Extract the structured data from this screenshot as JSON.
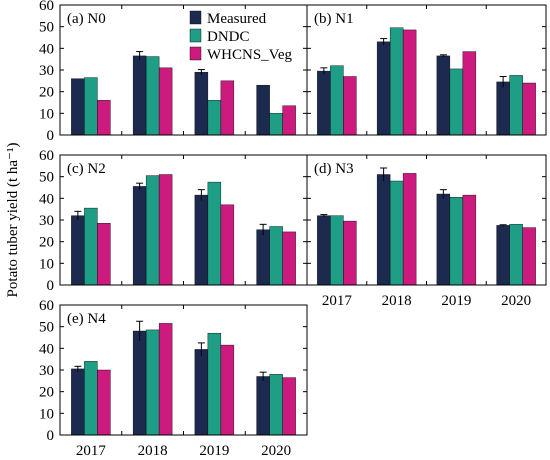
{
  "figure": {
    "ylabel": "Potato tuber yield (t ha⁻¹)",
    "years": [
      "2017",
      "2018",
      "2019",
      "2020"
    ],
    "legend": [
      {
        "name": "Measured",
        "color": "#1b2a4e"
      },
      {
        "name": "DNDC",
        "color": "#1f9e86"
      },
      {
        "name": "WHCNS_Veg",
        "color": "#cc1a7e"
      }
    ]
  },
  "chart_data": [
    {
      "type": "bar",
      "title": "(a) N0",
      "categories": [
        "2017",
        "2018",
        "2019",
        "2020"
      ],
      "ylim": [
        0,
        60
      ],
      "yticks": [
        0,
        10,
        20,
        30,
        40,
        50,
        60
      ],
      "series": [
        {
          "name": "Measured",
          "values": [
            26,
            36.5,
            29,
            23
          ],
          "errors": [
            0,
            2,
            1.2,
            0
          ]
        },
        {
          "name": "DNDC",
          "values": [
            26.5,
            36.2,
            16,
            10
          ]
        },
        {
          "name": "WHCNS_Veg",
          "values": [
            16,
            31,
            25,
            13.5
          ]
        }
      ]
    },
    {
      "type": "bar",
      "title": "(b) N1",
      "categories": [
        "2017",
        "2018",
        "2019",
        "2020"
      ],
      "ylim": [
        0,
        60
      ],
      "yticks": [
        0,
        10,
        20,
        30,
        40,
        50,
        60
      ],
      "series": [
        {
          "name": "Measured",
          "values": [
            29.5,
            43,
            36.5,
            24.5
          ],
          "errors": [
            1.5,
            1.5,
            0.5,
            2.5
          ]
        },
        {
          "name": "DNDC",
          "values": [
            32,
            49.5,
            30.5,
            27.5
          ]
        },
        {
          "name": "WHCNS_Veg",
          "values": [
            27,
            48.5,
            38.5,
            24
          ]
        }
      ]
    },
    {
      "type": "bar",
      "title": "(c) N2",
      "categories": [
        "2017",
        "2018",
        "2019",
        "2020"
      ],
      "ylim": [
        0,
        60
      ],
      "yticks": [
        0,
        10,
        20,
        30,
        40,
        50,
        60
      ],
      "series": [
        {
          "name": "Measured",
          "values": [
            32,
            45.5,
            41.5,
            25.5
          ],
          "errors": [
            2,
            1.5,
            2.5,
            2.5
          ]
        },
        {
          "name": "DNDC",
          "values": [
            35.5,
            50.5,
            47.5,
            27
          ]
        },
        {
          "name": "WHCNS_Veg",
          "values": [
            28.5,
            51,
            37,
            24.5
          ]
        }
      ]
    },
    {
      "type": "bar",
      "title": "(d) N3",
      "categories": [
        "2017",
        "2018",
        "2019",
        "2020"
      ],
      "ylim": [
        0,
        60
      ],
      "yticks": [
        0,
        10,
        20,
        30,
        40,
        50,
        60
      ],
      "series": [
        {
          "name": "Measured",
          "values": [
            32,
            51,
            42,
            27.5
          ],
          "errors": [
            0.5,
            3,
            2,
            0.3
          ]
        },
        {
          "name": "DNDC",
          "values": [
            32,
            48,
            40.5,
            28
          ]
        },
        {
          "name": "WHCNS_Veg",
          "values": [
            29.5,
            51.5,
            41.5,
            26.5
          ]
        }
      ]
    },
    {
      "type": "bar",
      "title": "(e) N4",
      "categories": [
        "2017",
        "2018",
        "2019",
        "2020"
      ],
      "ylim": [
        0,
        60
      ],
      "yticks": [
        0,
        10,
        20,
        30,
        40,
        50,
        60
      ],
      "series": [
        {
          "name": "Measured",
          "values": [
            30.5,
            48,
            39.5,
            27
          ],
          "errors": [
            1.2,
            4.5,
            3,
            2
          ]
        },
        {
          "name": "DNDC",
          "values": [
            34,
            48.5,
            47,
            28
          ]
        },
        {
          "name": "WHCNS_Veg",
          "values": [
            30,
            51.5,
            41.5,
            26.5
          ]
        }
      ]
    }
  ]
}
